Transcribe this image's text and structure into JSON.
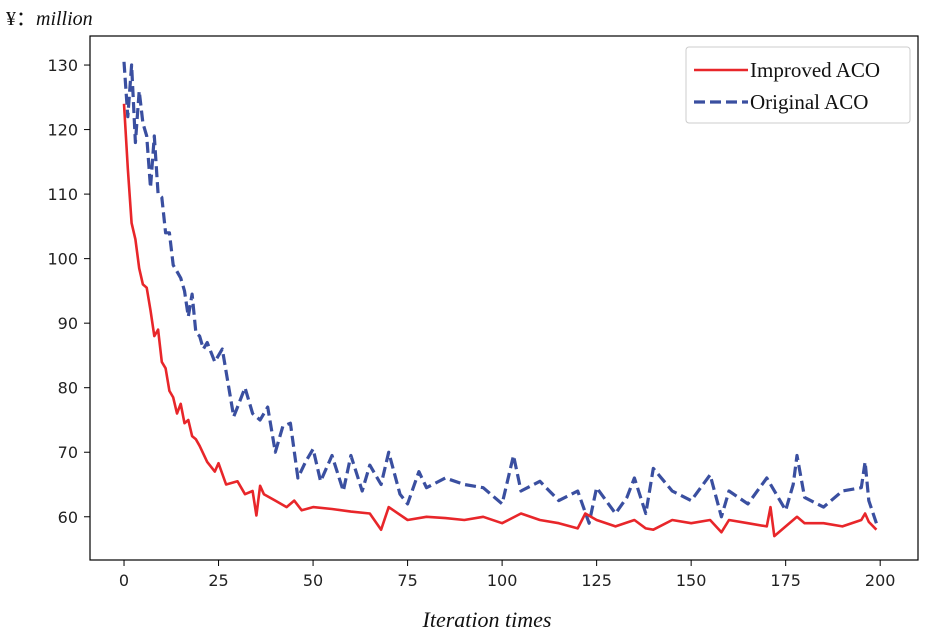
{
  "chart_data": {
    "type": "line",
    "title": "",
    "ylabel_unit": "¥：",
    "ylabel_unit_word": "million",
    "xlabel": "Iteration times",
    "xlim": [
      -9,
      210
    ],
    "ylim": [
      53.3,
      134.5
    ],
    "xticks": [
      0,
      25,
      50,
      75,
      100,
      125,
      150,
      175,
      200
    ],
    "yticks": [
      60,
      70,
      80,
      90,
      100,
      110,
      120,
      130
    ],
    "legend": {
      "placement": "top-right"
    },
    "series": [
      {
        "name": "Improved ACO",
        "color": "#e8262a",
        "style": "solid",
        "x": [
          0,
          1,
          2,
          3,
          4,
          5,
          6,
          7,
          8,
          9,
          10,
          11,
          12,
          13,
          14,
          15,
          16,
          17,
          18,
          19,
          20,
          22,
          24,
          25,
          27,
          30,
          32,
          34,
          35,
          36,
          37,
          40,
          43,
          45,
          47,
          50,
          55,
          60,
          65,
          68,
          70,
          75,
          80,
          85,
          90,
          95,
          100,
          105,
          110,
          115,
          120,
          122,
          125,
          130,
          135,
          138,
          140,
          145,
          150,
          155,
          158,
          160,
          165,
          170,
          171,
          172,
          175,
          178,
          180,
          185,
          190,
          195,
          196,
          197,
          199
        ],
        "values": [
          124,
          114,
          105.5,
          103,
          98.5,
          96,
          95.5,
          92,
          88,
          89,
          84,
          83,
          79.5,
          78.5,
          76,
          77.5,
          74.5,
          75,
          72.5,
          72,
          71,
          68.5,
          67,
          68.3,
          65,
          65.5,
          63.5,
          64,
          60.2,
          64.8,
          63.5,
          62.5,
          61.5,
          62.5,
          61,
          61.5,
          61.2,
          60.8,
          60.5,
          58,
          61.5,
          59.5,
          60,
          59.8,
          59.5,
          60,
          59,
          60.5,
          59.5,
          59,
          58.2,
          60.5,
          59.5,
          58.5,
          59.5,
          58.2,
          58,
          59.5,
          59,
          59.5,
          57.6,
          59.5,
          59,
          58.5,
          61.5,
          57,
          58.5,
          60,
          59,
          59,
          58.5,
          59.5,
          60.5,
          59.2,
          58
        ]
      },
      {
        "name": "Original ACO",
        "color": "#3a4fa0",
        "style": "dashed",
        "x": [
          0,
          1,
          2,
          3,
          4,
          5,
          6,
          7,
          8,
          9,
          10,
          11,
          12,
          13,
          14,
          15,
          16,
          17,
          18,
          19,
          20,
          21,
          22,
          24,
          26,
          28,
          29,
          30,
          32,
          34,
          36,
          38,
          40,
          42,
          44,
          46,
          48,
          50,
          52,
          55,
          58,
          60,
          63,
          65,
          68,
          70,
          73,
          75,
          78,
          80,
          85,
          90,
          95,
          100,
          103,
          105,
          110,
          115,
          120,
          123,
          125,
          130,
          133,
          135,
          138,
          140,
          145,
          150,
          155,
          158,
          160,
          165,
          170,
          175,
          177,
          178,
          180,
          185,
          190,
          195,
          196,
          197,
          199
        ],
        "values": [
          130.5,
          122,
          130,
          118,
          126,
          121,
          119,
          111,
          119,
          110,
          109.5,
          104,
          104,
          99,
          98,
          97,
          95,
          91,
          94.5,
          88.5,
          88,
          86,
          87,
          84,
          86,
          79,
          75.5,
          77,
          80,
          76,
          75,
          77,
          70,
          74,
          74.5,
          66,
          68.5,
          70.5,
          65.5,
          69.5,
          64,
          69.5,
          64,
          68,
          65,
          70,
          63.5,
          62,
          67,
          64.5,
          66,
          65,
          64.5,
          62,
          69.5,
          64,
          65.5,
          62.5,
          64,
          59,
          64.5,
          60.5,
          63,
          66,
          60.5,
          67.5,
          64,
          62.5,
          66.5,
          60,
          64,
          62,
          66,
          61,
          65,
          69.5,
          63,
          61.5,
          64,
          64.5,
          68.5,
          62.5,
          59
        ]
      }
    ]
  }
}
